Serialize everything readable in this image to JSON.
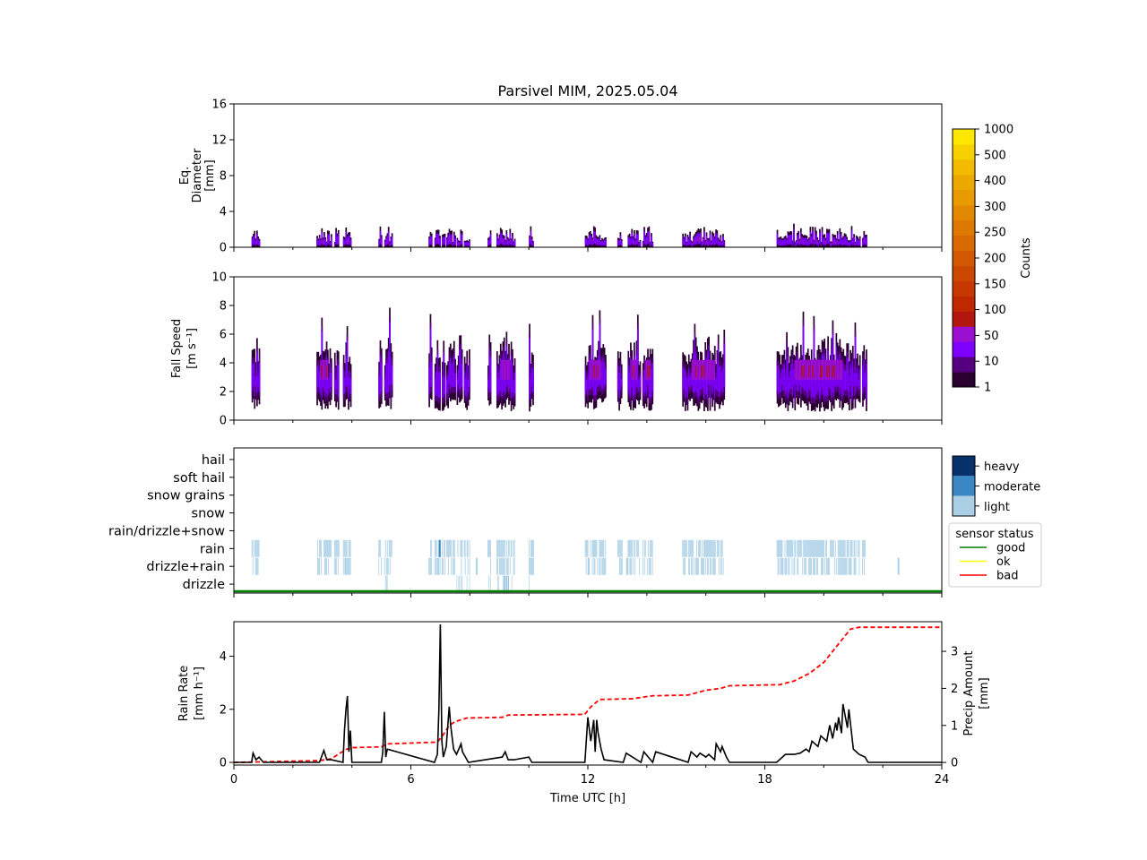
{
  "title": "Parsivel MIM, 2025.05.04",
  "xaxis": {
    "label": "Time UTC [h]",
    "range": [
      0,
      24
    ],
    "ticks": [
      0,
      6,
      12,
      18,
      24
    ]
  },
  "rain_events": [
    [
      0.6,
      0.85
    ],
    [
      2.8,
      3.3
    ],
    [
      3.4,
      3.55
    ],
    [
      3.7,
      3.95
    ],
    [
      4.9,
      5.0
    ],
    [
      5.1,
      5.35
    ],
    [
      6.6,
      6.7
    ],
    [
      6.8,
      7.0
    ],
    [
      7.05,
      7.15
    ],
    [
      7.2,
      7.5
    ],
    [
      7.55,
      7.75
    ],
    [
      7.8,
      8.0
    ],
    [
      8.6,
      8.7
    ],
    [
      8.9,
      9.5
    ],
    [
      10.0,
      10.15
    ],
    [
      11.9,
      12.6
    ],
    [
      13.0,
      13.15
    ],
    [
      13.35,
      13.75
    ],
    [
      13.85,
      14.2
    ],
    [
      15.2,
      16.6
    ],
    [
      18.4,
      21.2
    ],
    [
      21.3,
      21.45
    ]
  ],
  "chart_data": [
    {
      "type": "heatmap",
      "ylabel": "Eq.\nDiameter\n[mm]",
      "ylim": [
        0,
        16
      ],
      "yticks": [
        0,
        4,
        8,
        12,
        16
      ],
      "colorbar": {
        "label": "Counts",
        "ticks": [
          "1",
          "10",
          "50",
          "100",
          "150",
          "200",
          "250",
          "300",
          "400",
          "500",
          "1000"
        ],
        "colors": [
          "#2a0030",
          "#55007f",
          "#7d00ff",
          "#9b0fd0",
          "#b3160f",
          "#c02800",
          "#c63800",
          "#cc4800",
          "#d25800",
          "#d86800",
          "#dd7800",
          "#e28800",
          "#e89a00",
          "#eda800",
          "#f2ba00",
          "#f7d000",
          "#ffe800"
        ]
      }
    },
    {
      "type": "heatmap",
      "ylabel": "Fall Speed\n[m s⁻¹]",
      "ylim": [
        0,
        10
      ],
      "yticks": [
        0,
        2,
        4,
        6,
        8,
        10
      ]
    },
    {
      "type": "heatmap",
      "categories": [
        "drizzle",
        "drizzle+rain",
        "rain",
        "rain/drizzle+snow",
        "snow",
        "snow grains",
        "soft hail",
        "hail"
      ],
      "legend_intensity": [
        {
          "name": "heavy",
          "color": "#08306b"
        },
        {
          "name": "moderate",
          "color": "#3a87c4"
        },
        {
          "name": "light",
          "color": "#abd0e6"
        }
      ],
      "sensor_status": {
        "title": "sensor status",
        "entries": [
          {
            "name": "good",
            "color": "#008000"
          },
          {
            "name": "ok",
            "color": "#ffff00"
          },
          {
            "name": "bad",
            "color": "#ff0000"
          }
        ]
      }
    },
    {
      "type": "line",
      "ylabel": "Rain Rate\n[mm h⁻¹]",
      "y2label": "Precip Amount\n[mm]",
      "ylim": [
        -0.1,
        5.3
      ],
      "yticks": [
        0,
        2,
        4
      ],
      "y2lim": [
        -0.07,
        3.8
      ],
      "y2ticks": [
        0,
        1,
        2,
        3
      ],
      "rain_rate": {
        "color": "#000000",
        "x": [
          0,
          0.6,
          0.65,
          0.75,
          0.85,
          1.0,
          2.9,
          3.05,
          3.15,
          3.3,
          3.7,
          3.75,
          3.8,
          3.85,
          3.9,
          3.95,
          4.0,
          5.0,
          5.05,
          5.1,
          5.15,
          5.2,
          6.8,
          6.9,
          6.95,
          7.0,
          7.05,
          7.1,
          7.2,
          7.3,
          7.35,
          7.45,
          7.55,
          7.7,
          7.75,
          7.85,
          7.95,
          9.1,
          9.2,
          9.3,
          9.5,
          10.0,
          10.1,
          11.9,
          12.0,
          12.1,
          12.2,
          12.25,
          12.3,
          12.35,
          12.45,
          12.55,
          13.2,
          13.3,
          13.8,
          13.9,
          14.2,
          14.3,
          15.4,
          15.5,
          15.7,
          15.8,
          16.0,
          16.1,
          16.3,
          16.35,
          16.5,
          16.55,
          16.7,
          16.8,
          18.4,
          18.7,
          19.0,
          19.2,
          19.4,
          19.5,
          19.6,
          19.8,
          19.9,
          20.1,
          20.2,
          20.3,
          20.4,
          20.45,
          20.5,
          20.6,
          20.65,
          20.8,
          20.85,
          21.0,
          21.2,
          21.4,
          21.5,
          24
        ],
        "y": [
          0,
          0,
          0.35,
          0.1,
          0.2,
          0,
          0,
          0.45,
          0.1,
          0.1,
          0,
          1.2,
          2.0,
          2.5,
          0.4,
          1.2,
          0,
          0,
          0.4,
          1.9,
          0.2,
          0.5,
          0,
          0.3,
          2.0,
          5.2,
          0.8,
          0.2,
          0.6,
          2.1,
          1.4,
          0.5,
          0.3,
          0.7,
          0.4,
          0.2,
          0,
          0.2,
          0.4,
          0.1,
          0.1,
          0.2,
          0,
          0,
          1.7,
          0.8,
          1.6,
          0.4,
          1.6,
          1.1,
          0.5,
          0.1,
          0,
          0.35,
          0,
          0.4,
          0,
          0.4,
          0,
          0.4,
          0.2,
          0.35,
          0.2,
          0.3,
          0.1,
          0.7,
          0.4,
          0.6,
          0.2,
          0,
          0,
          0.3,
          0.3,
          0.35,
          0.5,
          0.4,
          0.8,
          0.6,
          1.0,
          0.8,
          1.4,
          0.9,
          1.5,
          1.2,
          1.7,
          1.1,
          2.2,
          1.3,
          2.0,
          0.5,
          0.3,
          0.2,
          0,
          0
        ],
        "x_note": ""
      },
      "precip_amount": {
        "color": "#ff0000",
        "style": "dashed",
        "x": [
          0,
          2.9,
          3.3,
          3.8,
          4.0,
          5.0,
          5.2,
          6.9,
          7.1,
          7.3,
          7.5,
          7.9,
          9.1,
          9.3,
          11.9,
          12.1,
          12.4,
          13.5,
          14.2,
          15.4,
          16.0,
          16.5,
          16.8,
          18.5,
          19.0,
          19.5,
          20.0,
          20.5,
          20.9,
          21.2,
          24
        ],
        "y": [
          0,
          0.05,
          0.1,
          0.35,
          0.4,
          0.42,
          0.5,
          0.55,
          0.75,
          1.0,
          1.1,
          1.2,
          1.22,
          1.28,
          1.3,
          1.5,
          1.7,
          1.72,
          1.8,
          1.82,
          1.95,
          2.0,
          2.07,
          2.1,
          2.2,
          2.4,
          2.7,
          3.2,
          3.6,
          3.65,
          3.65
        ]
      }
    }
  ]
}
